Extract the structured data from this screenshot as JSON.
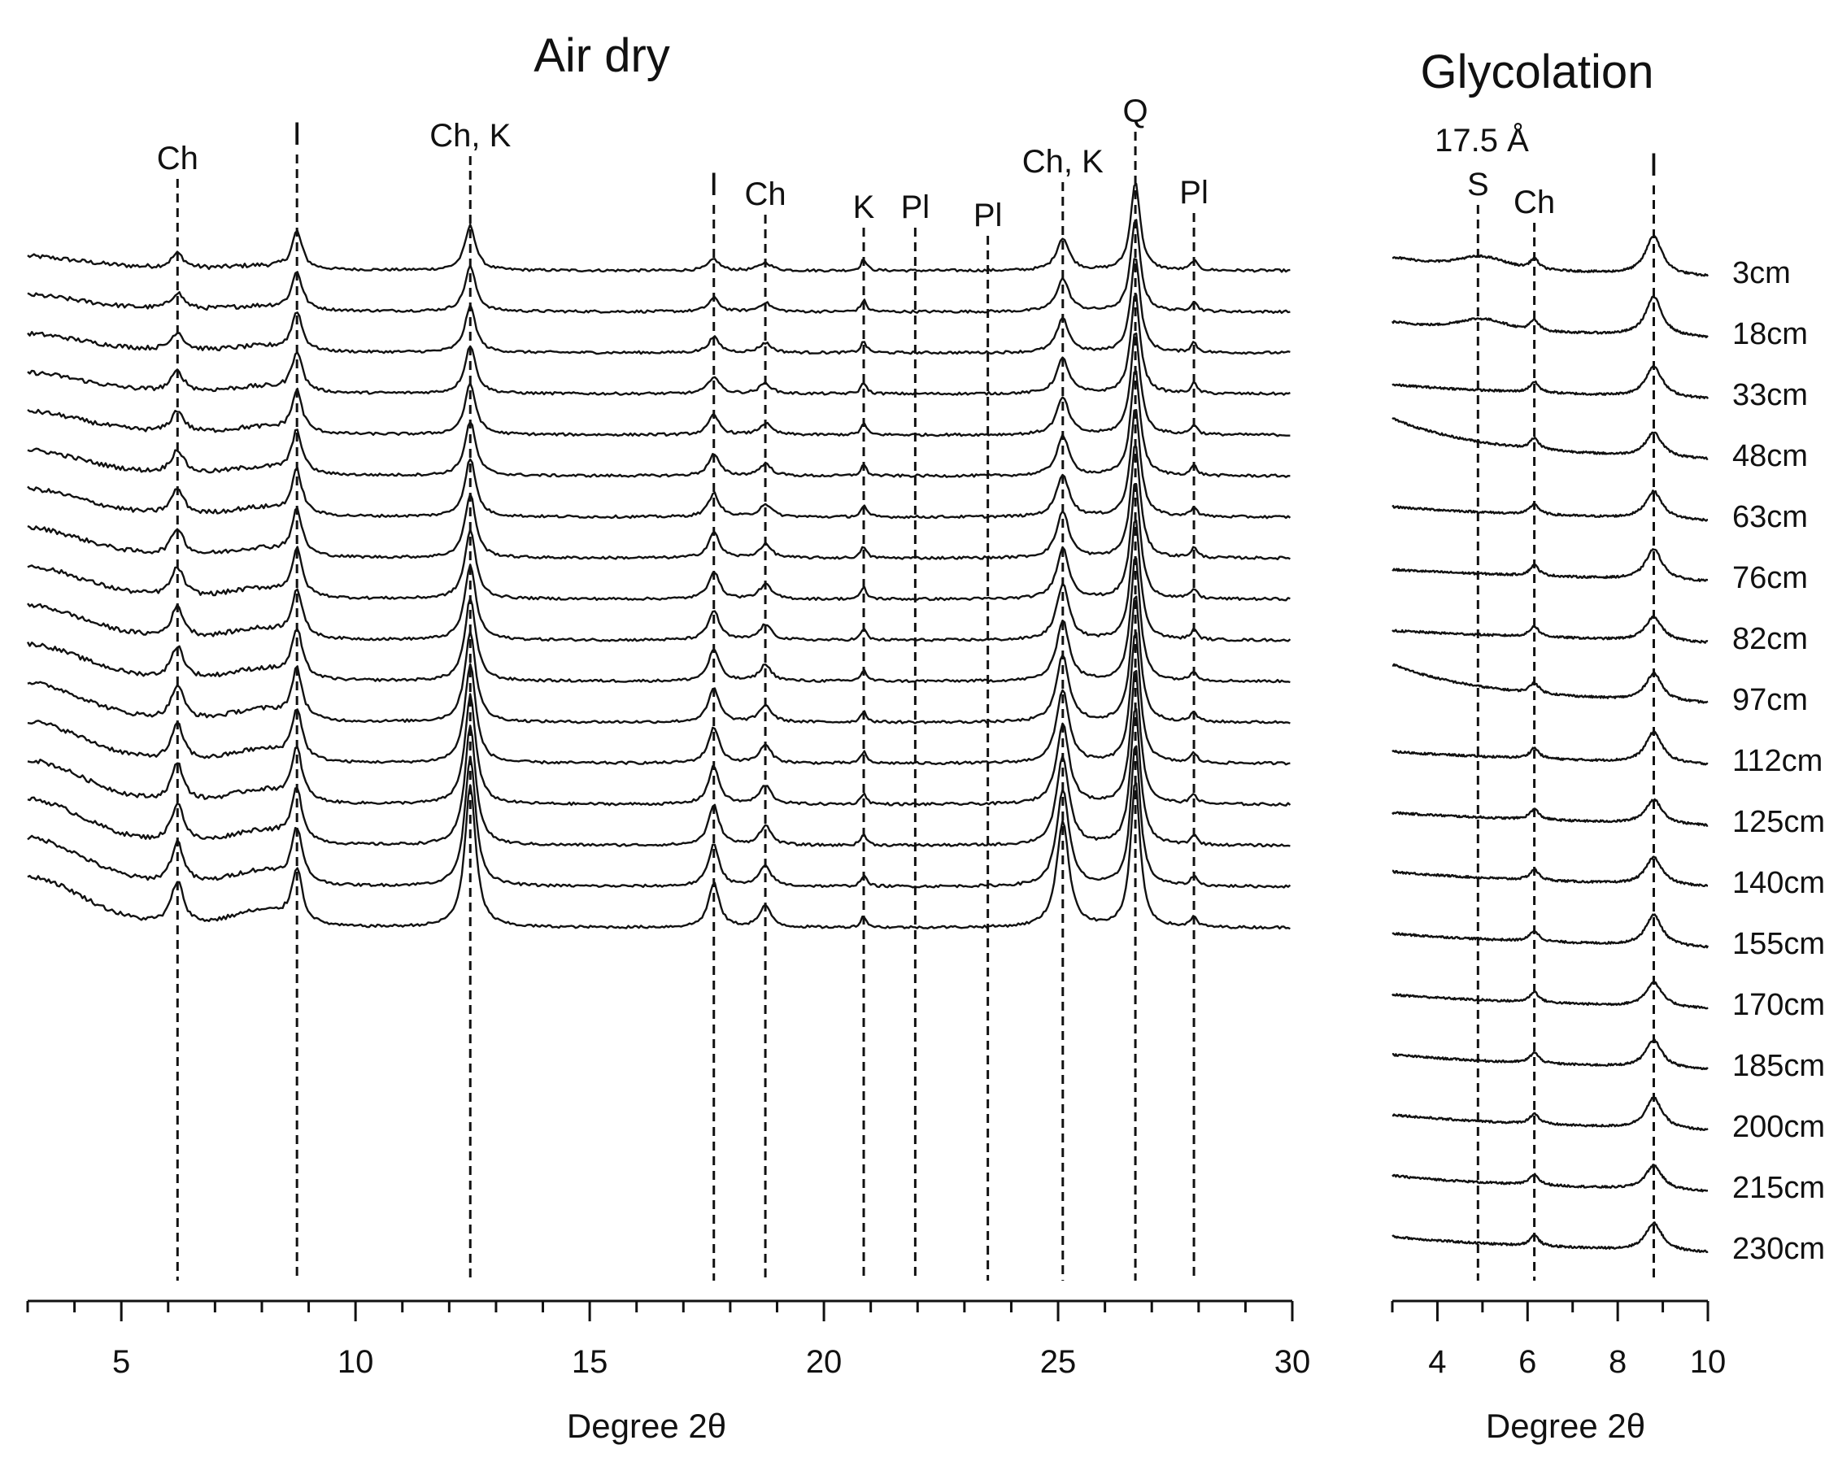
{
  "chart_data": [
    {
      "type": "line",
      "title": "Air dry",
      "xlabel": "Degree 2θ",
      "ylabel": "",
      "xlim": [
        3,
        30
      ],
      "xticks": [
        5,
        10,
        15,
        20,
        25,
        30
      ],
      "grid": false,
      "samples": [
        "3cm",
        "18cm",
        "33cm",
        "48cm",
        "63cm",
        "76cm",
        "82cm",
        "97cm",
        "112cm",
        "125cm",
        "140cm",
        "155cm",
        "170cm",
        "185cm",
        "200cm",
        "215cm",
        "230cm"
      ],
      "peak_markers": [
        {
          "label": "Ch",
          "x": 6.2
        },
        {
          "label": "I",
          "x": 8.75
        },
        {
          "label": "Ch, K",
          "x": 12.45
        },
        {
          "label": "I",
          "x": 17.65
        },
        {
          "label": "Ch",
          "x": 18.75
        },
        {
          "label": "K",
          "x": 20.85
        },
        {
          "label": "Pl",
          "x": 21.95
        },
        {
          "label": "Pl",
          "x": 23.5
        },
        {
          "label": "Ch, K",
          "x": 25.1
        },
        {
          "label": "Q",
          "x": 26.65
        },
        {
          "label": "Pl",
          "x": 27.9
        }
      ]
    },
    {
      "type": "line",
      "title": "Glycolation",
      "xlabel": "Degree 2θ",
      "ylabel": "",
      "xlim": [
        3,
        10
      ],
      "xticks": [
        4,
        6,
        8,
        10
      ],
      "grid": false,
      "samples": [
        "3cm",
        "18cm",
        "33cm",
        "48cm",
        "63cm",
        "76cm",
        "82cm",
        "97cm",
        "112cm",
        "125cm",
        "140cm",
        "155cm",
        "170cm",
        "185cm",
        "200cm",
        "215cm",
        "230cm"
      ],
      "annotation": "17.5 Å",
      "peak_markers": [
        {
          "label": "S",
          "x": 4.9
        },
        {
          "label": "Ch",
          "x": 6.15
        },
        {
          "label": "I",
          "x": 8.8
        }
      ]
    }
  ]
}
